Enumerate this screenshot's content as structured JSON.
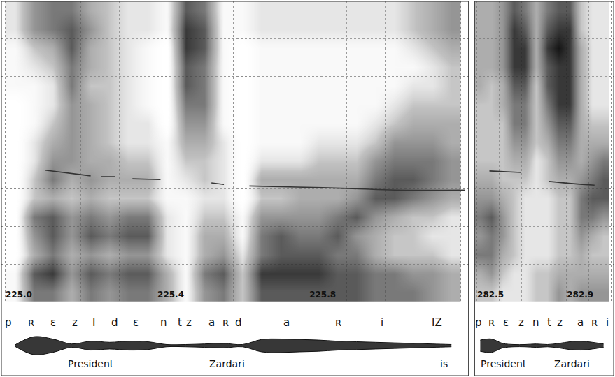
{
  "chart_data": [
    {
      "type": "spectrogram",
      "xlim": [
        224.99,
        226.22
      ],
      "xticks": [
        {
          "value": 225,
          "label": "225.0"
        },
        225.4,
        225.8
      ],
      "ylim": [
        0,
        8000
      ],
      "yticks": [
        0,
        1000,
        2000,
        3000,
        4000,
        5000,
        6000,
        7000,
        8000
      ],
      "tick_labels": "x",
      "grid": true,
      "cell_freqs": [
        250,
        750,
        1250,
        1750,
        2250,
        2750,
        3250,
        3750,
        4250,
        4750,
        5250,
        5750,
        6250,
        6750,
        7250,
        7750
      ],
      "cell_times": [
        225.025,
        225.075,
        225.125,
        225.175,
        225.225,
        225.275,
        225.325,
        225.375,
        225.425,
        225.475,
        225.525,
        225.575,
        225.625,
        225.675,
        225.725,
        225.775,
        225.825,
        225.875,
        225.925,
        225.975,
        226.025,
        226.075,
        226.125,
        226.175
      ],
      "cells": [
        [
          1,
          1,
          0,
          0,
          0,
          0,
          0,
          0,
          0,
          0,
          0,
          1,
          1,
          1,
          2,
          2
        ],
        [
          6,
          7,
          4,
          5,
          6,
          3,
          3,
          2,
          2,
          1,
          1,
          1,
          2,
          3,
          5,
          5
        ],
        [
          6,
          8,
          6,
          7,
          7,
          4,
          6,
          5,
          4,
          3,
          2,
          2,
          3,
          4,
          6,
          6
        ],
        [
          4,
          5,
          4,
          5,
          5,
          3,
          4,
          5,
          5,
          5,
          5,
          6,
          6,
          7,
          7,
          6
        ],
        [
          6,
          7,
          5,
          7,
          6,
          4,
          5,
          4,
          4,
          4,
          4,
          3,
          4,
          4,
          5,
          4
        ],
        [
          5,
          6,
          4,
          6,
          5,
          3,
          4,
          4,
          3,
          3,
          3,
          3,
          3,
          3,
          3,
          3
        ],
        [
          6,
          7,
          5,
          7,
          6,
          3,
          4,
          3,
          2,
          2,
          2,
          2,
          2,
          2,
          2,
          2
        ],
        [
          6,
          7,
          5,
          7,
          6,
          3,
          4,
          3,
          2,
          2,
          1,
          1,
          1,
          1,
          2,
          2
        ],
        [
          4,
          4,
          2,
          2,
          2,
          1,
          1,
          1,
          1,
          0,
          0,
          0,
          0,
          0,
          1,
          1
        ],
        [
          1,
          1,
          1,
          1,
          1,
          1,
          2,
          3,
          4,
          5,
          6,
          7,
          7,
          8,
          8,
          7
        ],
        [
          5,
          6,
          4,
          4,
          3,
          2,
          3,
          3,
          4,
          5,
          6,
          6,
          6,
          7,
          7,
          6
        ],
        [
          6,
          7,
          5,
          4,
          3,
          2,
          2,
          2,
          2,
          1,
          1,
          1,
          1,
          1,
          1,
          1
        ],
        [
          3,
          3,
          2,
          1,
          1,
          0,
          0,
          0,
          0,
          0,
          0,
          0,
          0,
          0,
          1,
          1
        ],
        [
          7,
          8,
          6,
          6,
          5,
          3,
          4,
          2,
          1,
          1,
          1,
          1,
          1,
          1,
          2,
          2
        ],
        [
          7,
          8,
          7,
          7,
          5,
          3,
          4,
          2,
          1,
          1,
          1,
          1,
          1,
          1,
          2,
          2
        ],
        [
          7,
          8,
          7,
          6,
          5,
          4,
          4,
          2,
          1,
          1,
          1,
          1,
          1,
          1,
          2,
          2
        ],
        [
          7,
          8,
          7,
          6,
          5,
          4,
          4,
          3,
          2,
          1,
          1,
          1,
          1,
          1,
          2,
          2
        ],
        [
          7,
          7,
          6,
          7,
          6,
          4,
          4,
          3,
          2,
          1,
          1,
          1,
          1,
          1,
          2,
          2
        ],
        [
          7,
          7,
          6,
          5,
          7,
          5,
          4,
          3,
          2,
          1,
          1,
          1,
          1,
          1,
          2,
          2
        ],
        [
          6,
          6,
          4,
          4,
          5,
          7,
          6,
          5,
          3,
          2,
          1,
          1,
          1,
          1,
          2,
          2
        ],
        [
          6,
          6,
          3,
          3,
          4,
          7,
          7,
          6,
          5,
          3,
          2,
          1,
          1,
          1,
          2,
          2
        ],
        [
          6,
          5,
          3,
          3,
          3,
          6,
          7,
          6,
          5,
          4,
          3,
          2,
          1,
          2,
          3,
          3
        ],
        [
          5,
          5,
          3,
          2,
          3,
          5,
          6,
          6,
          5,
          4,
          3,
          2,
          2,
          3,
          4,
          4
        ],
        [
          4,
          4,
          2,
          2,
          2,
          4,
          5,
          5,
          4,
          4,
          3,
          3,
          3,
          4,
          5,
          5
        ]
      ],
      "cell_range": [
        0,
        9
      ],
      "pitch": {
        "x": [
          225.105,
          225.225,
          null,
          225.252,
          225.289,
          null,
          225.335,
          225.409,
          null,
          225.543,
          225.576,
          null,
          225.643,
          225.768,
          225.915,
          226.026,
          226.21
        ],
        "values": [
          3500,
          3350,
          null,
          3330,
          3330,
          null,
          3270,
          3250,
          null,
          3160,
          3120,
          null,
          3080,
          3050,
          3010,
          2970,
          2970
        ]
      },
      "waveform": {
        "ylim": [
          -1,
          1
        ],
        "values": [
          0.05,
          0.8,
          0.6,
          0.15,
          0.4,
          0.3,
          0.4,
          0.35,
          0.1,
          0.1,
          0.15,
          0.2,
          0.1,
          0.55,
          0.6,
          0.55,
          0.5,
          0.4,
          0.35,
          0.3,
          0.25,
          0.2,
          0.15,
          0.1
        ]
      },
      "segments": [
        {
          "text": "p",
          "x": 225.009
        },
        {
          "text": "ʀ",
          "x": 225.068
        },
        {
          "text": "ɛ",
          "x": 225.127
        },
        {
          "text": "z",
          "x": 225.184
        },
        {
          "text": "I",
          "x": 225.234
        },
        {
          "text": "d",
          "x": 225.289
        },
        {
          "text": "ɛ",
          "x": 225.344
        },
        {
          "text": "n",
          "x": 225.418
        },
        {
          "text": "t",
          "x": 225.459
        },
        {
          "text": "z",
          "x": 225.484
        },
        {
          "text": "a",
          "x": 225.543
        },
        {
          "text": "ʀ",
          "x": 225.58
        },
        {
          "text": "d",
          "x": 225.615
        },
        {
          "text": "a",
          "x": 225.74
        },
        {
          "text": "ʀ",
          "x": 225.878
        },
        {
          "text": "i",
          "x": 225.993
        },
        {
          "text": "IZ",
          "x": 226.136
        }
      ],
      "words": [
        {
          "text": "President",
          "x": 225.225
        },
        {
          "text": "Zardari",
          "x": 225.584
        },
        {
          "text": "is",
          "x": 226.155
        }
      ]
    },
    {
      "type": "spectrogram",
      "xlim": [
        282.49,
        283.11
      ],
      "xticks": [
        282.5,
        282.9
      ],
      "ylim": [
        0,
        8000
      ],
      "yticks": [
        0,
        1000,
        2000,
        3000,
        4000,
        5000,
        6000,
        7000,
        8000
      ],
      "tick_labels": "x",
      "grid": true,
      "cell_freqs": [
        250,
        750,
        1250,
        1750,
        2250,
        2750,
        3250,
        3750,
        4250,
        4750,
        5250,
        5750,
        6250,
        6750,
        7250,
        7750
      ],
      "cell_times": [
        282.515,
        282.565,
        282.615,
        282.665,
        282.715,
        282.765,
        282.815,
        282.865,
        282.915,
        282.965,
        283.015,
        283.065
      ],
      "cells": [
        [
          3,
          4,
          6,
          5,
          6,
          5,
          4,
          3,
          3,
          3,
          3,
          4,
          4,
          4,
          4,
          4
        ],
        [
          3,
          5,
          6,
          6,
          7,
          5,
          4,
          3,
          3,
          3,
          3,
          3,
          4,
          4,
          4,
          4
        ],
        [
          2,
          3,
          4,
          5,
          5,
          4,
          3,
          3,
          3,
          3,
          4,
          4,
          5,
          5,
          5,
          5
        ],
        [
          2,
          2,
          3,
          3,
          3,
          3,
          3,
          4,
          5,
          6,
          6,
          7,
          8,
          8,
          8,
          7
        ],
        [
          2,
          2,
          2,
          2,
          2,
          2,
          3,
          4,
          5,
          6,
          6,
          7,
          8,
          8,
          7,
          6
        ],
        [
          3,
          3,
          2,
          2,
          2,
          2,
          2,
          2,
          3,
          3,
          3,
          3,
          4,
          4,
          4,
          4
        ],
        [
          3,
          3,
          2,
          2,
          2,
          2,
          3,
          3,
          4,
          5,
          6,
          7,
          7,
          8,
          7,
          6
        ],
        [
          5,
          4,
          3,
          3,
          3,
          3,
          4,
          5,
          6,
          7,
          8,
          8,
          8,
          9,
          8,
          7
        ],
        [
          4,
          4,
          3,
          3,
          3,
          3,
          4,
          5,
          6,
          7,
          8,
          8,
          8,
          8,
          8,
          7
        ],
        [
          5,
          4,
          4,
          5,
          6,
          6,
          5,
          4,
          4,
          4,
          4,
          4,
          4,
          4,
          3,
          3
        ],
        [
          5,
          4,
          3,
          4,
          6,
          7,
          6,
          5,
          4,
          3,
          2,
          2,
          2,
          2,
          2,
          2
        ],
        [
          5,
          4,
          3,
          3,
          5,
          7,
          7,
          6,
          4,
          3,
          2,
          2,
          2,
          2,
          2,
          2
        ]
      ],
      "cell_range": [
        0,
        9
      ],
      "pitch": {
        "x": [
          282.556,
          282.697,
          null,
          282.822,
          282.931,
          283.025
        ],
        "values": [
          3480,
          3440,
          null,
          3200,
          3140,
          3100
        ]
      },
      "waveform": {
        "ylim": [
          -1,
          1
        ],
        "values": [
          0.5,
          0.6,
          0.2,
          0.1,
          0.1,
          0.15,
          0.1,
          0.2,
          0.35,
          0.4,
          0.3,
          0.15
        ]
      },
      "segments": [
        {
          "text": "p",
          "x": 282.506
        },
        {
          "text": "ʀ",
          "x": 282.566
        },
        {
          "text": "ɛ",
          "x": 282.628
        },
        {
          "text": "z",
          "x": 282.697
        },
        {
          "text": "n",
          "x": 282.763
        },
        {
          "text": "t",
          "x": 282.822
        },
        {
          "text": "z",
          "x": 282.869
        },
        {
          "text": "a",
          "x": 282.963
        },
        {
          "text": "ʀ",
          "x": 283.025
        },
        {
          "text": "i",
          "x": 283.081
        }
      ],
      "words": [
        {
          "text": "President",
          "x": 282.619
        },
        {
          "text": "Zardari",
          "x": 282.925
        }
      ]
    }
  ]
}
